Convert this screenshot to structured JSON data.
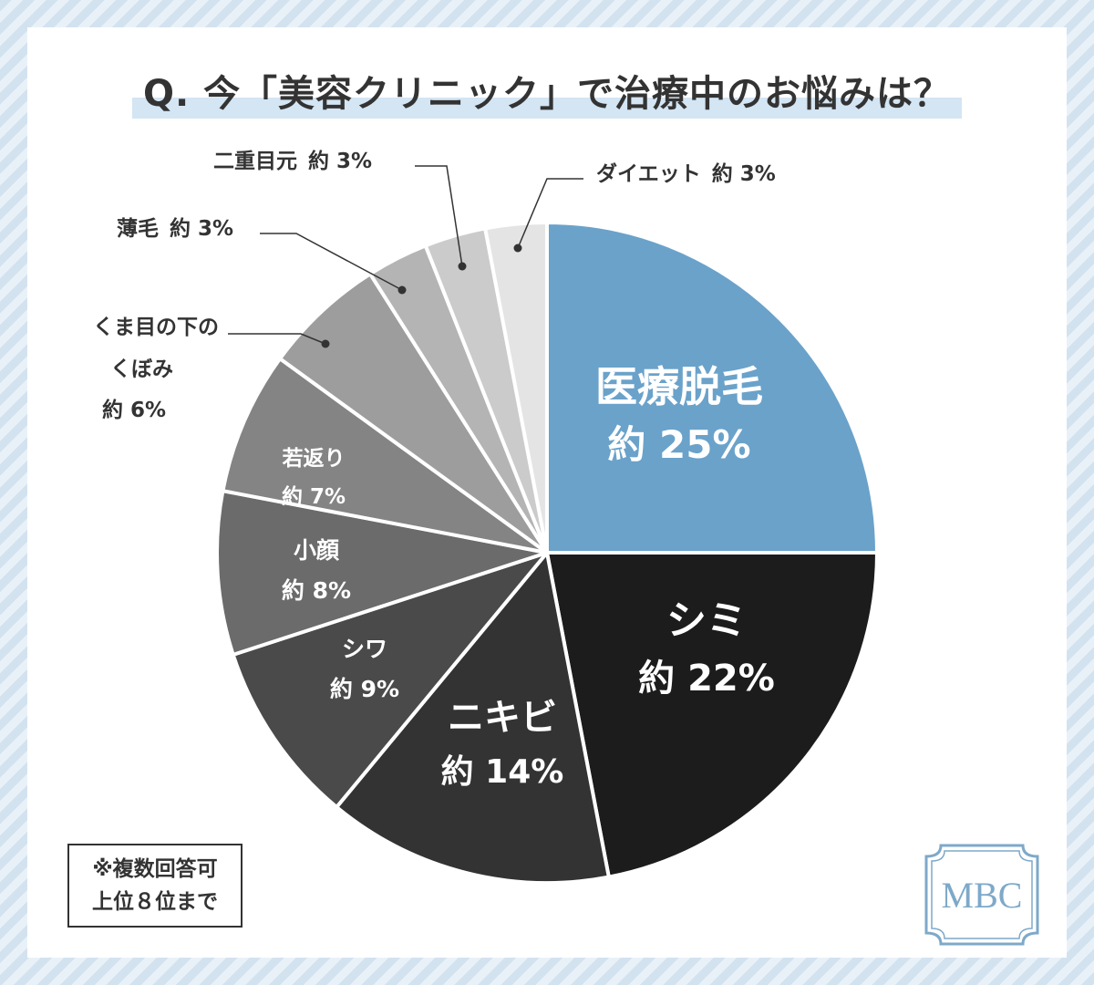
{
  "title": "Q. 今「美容クリニック」で治療中のお悩みは？",
  "note": {
    "line1": "※複数回答可",
    "line2": "上位８位まで"
  },
  "logo": {
    "text": "MBC"
  },
  "chart_data": {
    "type": "pie",
    "title": "Q. 今「美容クリニック」で治療中のお悩みは？",
    "start": "12 o'clock, clockwise",
    "slices": [
      {
        "name": "医療脱毛",
        "value": 25,
        "label": "約 25%",
        "color": "#6aa2ca",
        "text_color": "#ffffff"
      },
      {
        "name": "シミ",
        "value": 22,
        "label": "約 22%",
        "color": "#1c1c1c",
        "text_color": "#ffffff"
      },
      {
        "name": "ニキビ",
        "value": 14,
        "label": "約 14%",
        "color": "#333333",
        "text_color": "#ffffff"
      },
      {
        "name": "シワ",
        "value": 9,
        "label": "約 9%",
        "color": "#4a4a4a",
        "text_color": "#ffffff"
      },
      {
        "name": "小顔",
        "value": 8,
        "label": "約 8%",
        "color": "#6b6b6b",
        "text_color": "#ffffff"
      },
      {
        "name": "若返り",
        "value": 7,
        "label": "約 7%",
        "color": "#848484",
        "text_color": "#ffffff"
      },
      {
        "name": "くま目の下のくぼみ",
        "value": 6,
        "label": "約 6%",
        "color": "#9d9d9d",
        "text_color": "#333333"
      },
      {
        "name": "薄毛",
        "value": 3,
        "label": "約 3%",
        "color": "#b4b4b4",
        "text_color": "#333333"
      },
      {
        "name": "二重目元",
        "value": 3,
        "label": "約 3%",
        "color": "#cbcbcb",
        "text_color": "#333333"
      },
      {
        "name": "ダイエット",
        "value": 3,
        "label": "約 3%",
        "color": "#e4e4e4",
        "text_color": "#333333"
      }
    ]
  }
}
